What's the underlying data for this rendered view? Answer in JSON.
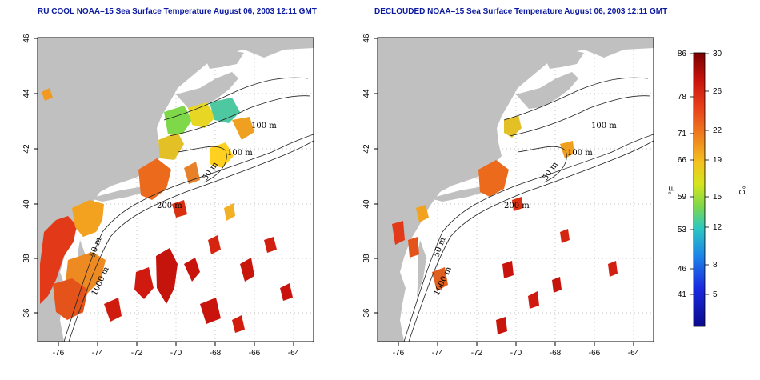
{
  "panels": [
    {
      "title": "RU COOL NOAA–15 Sea Surface Temperature August 06, 2003 12:11 GMT",
      "x_ticks": [
        "-76",
        "-74",
        "-72",
        "-70",
        "-68",
        "-66",
        "-64"
      ],
      "y_ticks": [
        "36",
        "38",
        "40",
        "42",
        "44",
        "46"
      ],
      "isobath_labels": [
        "100 m",
        "100 m",
        "50 m",
        "200 m",
        "50 m",
        "1000 m"
      ]
    },
    {
      "title": "DECLOUDED NOAA–15 Sea Surface Temperature August 06, 2003 12:11 GMT",
      "x_ticks": [
        "-76",
        "-74",
        "-72",
        "-70",
        "-68",
        "-66",
        "-64"
      ],
      "y_ticks": [
        "36",
        "38",
        "40",
        "42",
        "44",
        "46"
      ],
      "isobath_labels": [
        "100 m",
        "100 m",
        "50 m",
        "200 m",
        "50 m",
        "1000 m"
      ]
    }
  ],
  "colorbar": {
    "fahrenheit_ticks": [
      "86",
      "78",
      "71",
      "66",
      "59",
      "53",
      "46",
      "41"
    ],
    "celsius_ticks": [
      "30",
      "26",
      "22",
      "19",
      "15",
      "12",
      "8",
      "5"
    ],
    "fahrenheit_label": "°F",
    "celsius_label": "°C",
    "colors": [
      "#7a0000",
      "#c8140c",
      "#e8401a",
      "#f08a1e",
      "#f4c020",
      "#d6e41e",
      "#7ed84a",
      "#2ec8c0",
      "#1e86e8",
      "#1a2ae0",
      "#0a0a8c"
    ]
  },
  "colors": {
    "land": "#c0c0c0",
    "title": "#0c1aa0",
    "grid": "#b0b0b0"
  }
}
